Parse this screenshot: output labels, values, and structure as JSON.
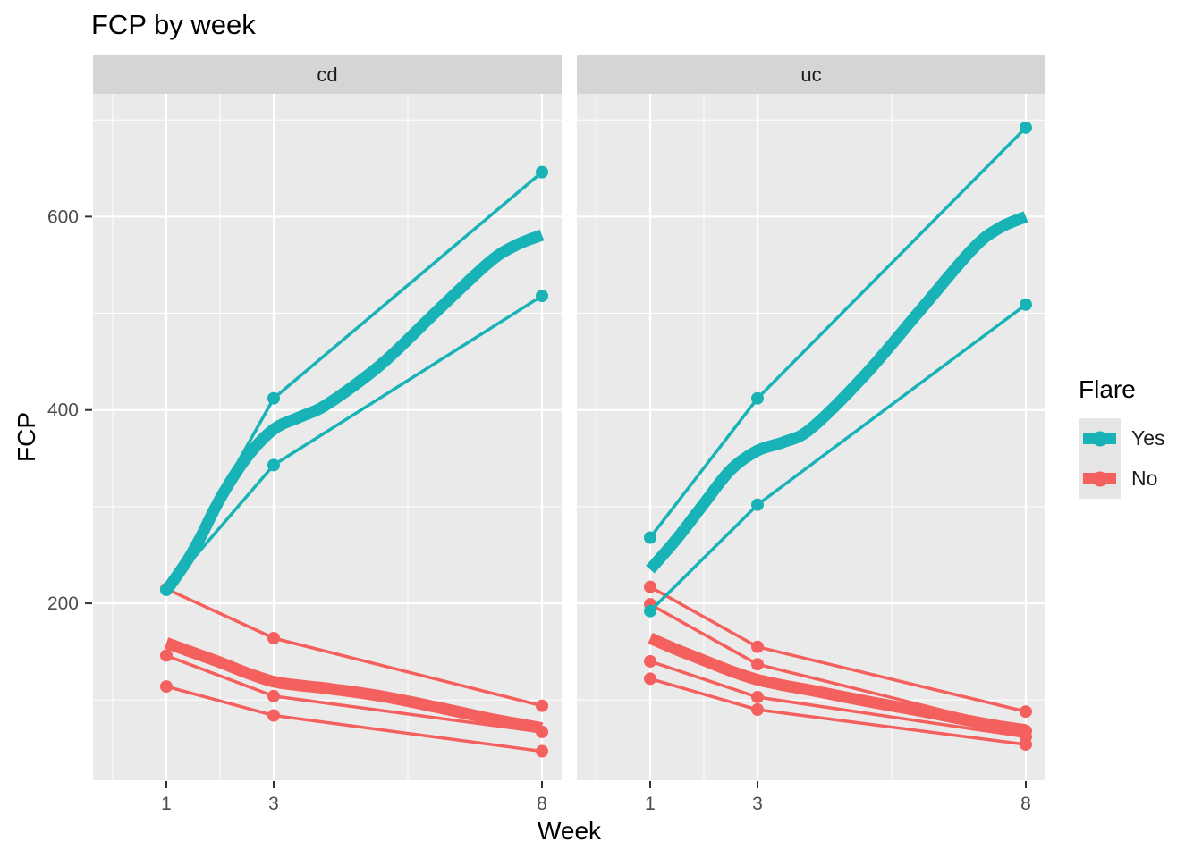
{
  "colors": {
    "yes": "#18b3b6",
    "no": "#f4605d",
    "panel_bg": "#eaeaea",
    "strip_bg": "#d5d5d5",
    "grid": "#ffffff",
    "tick_text": "#4d4d4d",
    "axis_tick": "#333333",
    "text": "#000000"
  },
  "chart_data": {
    "type": "line",
    "title": "FCP by week",
    "xlabel": "Week",
    "ylabel": "FCP",
    "x_ticks": [
      1,
      3,
      8
    ],
    "y_ticks": [
      200,
      400,
      600
    ],
    "x_minor": [
      0,
      2,
      5.5
    ],
    "y_minor": [
      100,
      300,
      500,
      700
    ],
    "x_domain": [
      -0.37,
      8.37
    ],
    "y_domain": [
      17,
      727
    ],
    "grid": "on",
    "legend": {
      "title": "Flare",
      "position": "right",
      "entries": [
        {
          "label": "Yes",
          "color": "#18b3b6"
        },
        {
          "label": "No",
          "color": "#f4605d"
        }
      ]
    },
    "facets": [
      {
        "label": "cd",
        "subjects": [
          {
            "flare": "Yes",
            "values": [
              [
                1,
                214
              ],
              [
                3,
                412
              ],
              [
                8,
                646
              ]
            ]
          },
          {
            "flare": "Yes",
            "values": [
              [
                1,
                214
              ],
              [
                3,
                343
              ],
              [
                8,
                518
              ]
            ]
          },
          {
            "flare": "No",
            "values": [
              [
                1,
                215
              ],
              [
                3,
                164
              ],
              [
                8,
                94
              ]
            ]
          },
          {
            "flare": "No",
            "values": [
              [
                1,
                146
              ],
              [
                3,
                104
              ],
              [
                8,
                67
              ]
            ]
          },
          {
            "flare": "No",
            "values": [
              [
                1,
                114
              ],
              [
                3,
                84
              ],
              [
                8,
                47
              ]
            ]
          }
        ],
        "smooth": [
          {
            "flare": "Yes",
            "values": [
              [
                1,
                213
              ],
              [
                1.5,
                254
              ],
              [
                2,
                308
              ],
              [
                2.5,
                351
              ],
              [
                3,
                380
              ],
              [
                3.5,
                393
              ],
              [
                4,
                406
              ],
              [
                5,
                447
              ],
              [
                6,
                500
              ],
              [
                7,
                552
              ],
              [
                7.5,
                570
              ],
              [
                8,
                581
              ]
            ]
          },
          {
            "flare": "No",
            "values": [
              [
                1,
                159
              ],
              [
                1.5,
                149
              ],
              [
                2,
                139
              ],
              [
                2.5,
                128
              ],
              [
                3,
                119
              ],
              [
                3.5,
                115
              ],
              [
                4,
                112
              ],
              [
                5,
                104
              ],
              [
                6,
                93
              ],
              [
                7,
                81
              ],
              [
                7.5,
                76
              ],
              [
                8,
                71
              ]
            ]
          }
        ]
      },
      {
        "label": "uc",
        "subjects": [
          {
            "flare": "Yes",
            "values": [
              [
                1,
                268
              ],
              [
                3,
                412
              ],
              [
                8,
                692
              ]
            ]
          },
          {
            "flare": "Yes",
            "values": [
              [
                1,
                192
              ],
              [
                3,
                302
              ],
              [
                8,
                509
              ]
            ]
          },
          {
            "flare": "No",
            "values": [
              [
                1,
                217
              ],
              [
                3,
                155
              ],
              [
                8,
                88
              ]
            ]
          },
          {
            "flare": "No",
            "values": [
              [
                1,
                199
              ],
              [
                3,
                137
              ],
              [
                8,
                68
              ]
            ]
          },
          {
            "flare": "No",
            "values": [
              [
                1,
                140
              ],
              [
                3,
                103
              ],
              [
                8,
                62
              ]
            ]
          },
          {
            "flare": "No",
            "values": [
              [
                1,
                122
              ],
              [
                3,
                90
              ],
              [
                8,
                54
              ]
            ]
          }
        ],
        "smooth": [
          {
            "flare": "Yes",
            "values": [
              [
                1,
                235
              ],
              [
                1.5,
                267
              ],
              [
                2,
                303
              ],
              [
                2.5,
                338
              ],
              [
                3,
                358
              ],
              [
                3.5,
                367
              ],
              [
                4,
                381
              ],
              [
                5,
                436
              ],
              [
                6,
                501
              ],
              [
                7,
                566
              ],
              [
                7.5,
                588
              ],
              [
                8,
                600
              ]
            ]
          },
          {
            "flare": "No",
            "values": [
              [
                1,
                164
              ],
              [
                1.5,
                152
              ],
              [
                2,
                141
              ],
              [
                2.5,
                130
              ],
              [
                3,
                121
              ],
              [
                3.5,
                115
              ],
              [
                4,
                110
              ],
              [
                5,
                99
              ],
              [
                6,
                89
              ],
              [
                7,
                78
              ],
              [
                7.5,
                73
              ],
              [
                8,
                69
              ]
            ]
          }
        ]
      }
    ]
  }
}
